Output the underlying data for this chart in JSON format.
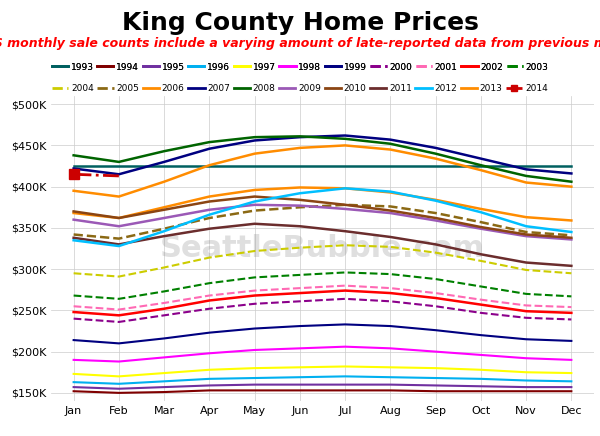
{
  "title": "King County Home Prices",
  "subtitle": "NWMLS monthly sale counts include a varying amount of late-reported data from previous months.",
  "months": [
    "Jan",
    "Feb",
    "Mar",
    "Apr",
    "May",
    "Jun",
    "Jul",
    "Aug",
    "Sep",
    "Oct",
    "Nov",
    "Dec"
  ],
  "ylim": [
    140000,
    510000
  ],
  "yticks": [
    150000,
    200000,
    250000,
    300000,
    350000,
    400000,
    450000,
    500000
  ],
  "ytick_labels": [
    "$150K",
    "$200K",
    "$250K",
    "$300K",
    "$350K",
    "$400K",
    "$450K",
    "$500K"
  ],
  "series": [
    {
      "year": "1993",
      "color": "#006060",
      "dash": "solid",
      "lw": 1.8,
      "values": [
        425000,
        425000,
        425000,
        425000,
        425000,
        425000,
        425000,
        425000,
        425000,
        425000,
        425000,
        425000
      ]
    },
    {
      "year": "1994",
      "color": "#800000",
      "dash": "solid",
      "lw": 1.5,
      "values": [
        152000,
        150000,
        151000,
        153000,
        153000,
        153000,
        153000,
        153000,
        152000,
        152000,
        152000,
        152000
      ]
    },
    {
      "year": "1995",
      "color": "#7030a0",
      "dash": "solid",
      "lw": 1.5,
      "values": [
        157000,
        155000,
        157000,
        159000,
        160000,
        160000,
        160000,
        160000,
        159000,
        158000,
        157000,
        157000
      ]
    },
    {
      "year": "1996",
      "color": "#00b0f0",
      "dash": "solid",
      "lw": 1.5,
      "values": [
        163000,
        161000,
        164000,
        167000,
        168000,
        169000,
        170000,
        169000,
        168000,
        167000,
        165000,
        164000
      ]
    },
    {
      "year": "1997",
      "color": "#ffff00",
      "dash": "solid",
      "lw": 1.5,
      "values": [
        173000,
        170000,
        174000,
        178000,
        180000,
        181000,
        182000,
        181000,
        180000,
        178000,
        175000,
        174000
      ]
    },
    {
      "year": "1998",
      "color": "#ff00ff",
      "dash": "solid",
      "lw": 1.5,
      "values": [
        190000,
        188000,
        193000,
        198000,
        202000,
        204000,
        206000,
        204000,
        200000,
        196000,
        192000,
        190000
      ]
    },
    {
      "year": "1999",
      "color": "#000080",
      "dash": "solid",
      "lw": 1.5,
      "values": [
        214000,
        210000,
        216000,
        223000,
        228000,
        231000,
        233000,
        231000,
        226000,
        220000,
        215000,
        213000
      ]
    },
    {
      "year": "2000",
      "color": "#8b008b",
      "dash": "dashed",
      "lw": 1.5,
      "values": [
        240000,
        236000,
        244000,
        252000,
        258000,
        261000,
        264000,
        261000,
        255000,
        247000,
        241000,
        239000
      ]
    },
    {
      "year": "2001",
      "color": "#ff69b4",
      "dash": "dashed",
      "lw": 1.5,
      "values": [
        255000,
        251000,
        259000,
        268000,
        274000,
        277000,
        280000,
        277000,
        271000,
        263000,
        256000,
        254000
      ]
    },
    {
      "year": "2002",
      "color": "#ff0000",
      "dash": "solid",
      "lw": 1.8,
      "values": [
        248000,
        244000,
        252000,
        262000,
        268000,
        271000,
        274000,
        271000,
        265000,
        257000,
        249000,
        247000
      ]
    },
    {
      "year": "2003",
      "color": "#008000",
      "dash": "dashed",
      "lw": 1.5,
      "values": [
        268000,
        264000,
        273000,
        283000,
        290000,
        293000,
        296000,
        294000,
        288000,
        279000,
        270000,
        267000
      ]
    },
    {
      "year": "2004",
      "color": "#cccc00",
      "dash": "dashed",
      "lw": 1.5,
      "values": [
        295000,
        291000,
        302000,
        314000,
        322000,
        326000,
        329000,
        327000,
        320000,
        310000,
        299000,
        295000
      ]
    },
    {
      "year": "2005",
      "color": "#8b6914",
      "dash": "dashed",
      "lw": 1.8,
      "values": [
        342000,
        337000,
        349000,
        362000,
        371000,
        375000,
        378000,
        376000,
        368000,
        357000,
        345000,
        341000
      ]
    },
    {
      "year": "2006",
      "color": "#ff8c00",
      "dash": "solid",
      "lw": 1.8,
      "values": [
        368000,
        362000,
        375000,
        388000,
        396000,
        399000,
        398000,
        393000,
        384000,
        373000,
        363000,
        359000
      ]
    },
    {
      "year": "2007",
      "color": "#000080",
      "dash": "solid",
      "lw": 1.8,
      "values": [
        422000,
        415000,
        430000,
        446000,
        456000,
        460000,
        462000,
        457000,
        447000,
        434000,
        421000,
        416000
      ]
    },
    {
      "year": "2008",
      "color": "#006400",
      "dash": "solid",
      "lw": 1.8,
      "values": [
        438000,
        430000,
        443000,
        454000,
        460000,
        461000,
        458000,
        452000,
        440000,
        426000,
        413000,
        406000
      ]
    },
    {
      "year": "2009",
      "color": "#9b59b6",
      "dash": "solid",
      "lw": 1.8,
      "values": [
        360000,
        352000,
        362000,
        372000,
        378000,
        377000,
        373000,
        368000,
        359000,
        349000,
        340000,
        336000
      ]
    },
    {
      "year": "2010",
      "color": "#8b4513",
      "dash": "solid",
      "lw": 1.8,
      "values": [
        370000,
        362000,
        372000,
        382000,
        388000,
        384000,
        378000,
        371000,
        362000,
        351000,
        342000,
        338000
      ]
    },
    {
      "year": "2011",
      "color": "#6b2d2d",
      "dash": "solid",
      "lw": 1.8,
      "values": [
        338000,
        330000,
        340000,
        349000,
        355000,
        352000,
        346000,
        339000,
        330000,
        318000,
        308000,
        304000
      ]
    },
    {
      "year": "2012",
      "color": "#00bfff",
      "dash": "solid",
      "lw": 1.8,
      "values": [
        335000,
        328000,
        346000,
        366000,
        382000,
        392000,
        398000,
        394000,
        383000,
        369000,
        352000,
        345000
      ]
    },
    {
      "year": "2013",
      "color": "#ff8c00",
      "dash": "solid",
      "lw": 1.8,
      "values": [
        395000,
        388000,
        406000,
        426000,
        440000,
        447000,
        450000,
        445000,
        434000,
        420000,
        405000,
        400000
      ]
    },
    {
      "year": "2014",
      "color": "#cc0000",
      "dash": "dashdot",
      "lw": 2.0,
      "values": [
        415000,
        413000,
        null,
        null,
        null,
        null,
        null,
        null,
        null,
        null,
        null,
        null
      ]
    }
  ],
  "legend_row1": [
    "1993",
    "1994",
    "1995",
    "1996",
    "1997",
    "1998",
    "1999",
    "2000",
    "2001",
    "2002",
    "2003"
  ],
  "legend_row2": [
    "2004",
    "2005",
    "2006",
    "2007",
    "2008",
    "2009",
    "2010",
    "2011",
    "2012",
    "2013",
    "2014"
  ],
  "legend_colors": {
    "1993": "#006060",
    "1994": "#800000",
    "1995": "#7030a0",
    "1996": "#00b0f0",
    "1997": "#ffff00",
    "1998": "#ff00ff",
    "1999": "#000080",
    "2000": "#8b008b",
    "2001": "#ff69b4",
    "2002": "#ff0000",
    "2003": "#008000",
    "2004": "#cccc00",
    "2005": "#8b6914",
    "2006": "#ff8c00",
    "2007": "#000080",
    "2008": "#006400",
    "2009": "#9b59b6",
    "2010": "#8b4513",
    "2011": "#6b2d2d",
    "2012": "#00bfff",
    "2013": "#ff8c00",
    "2014": "#cc0000"
  },
  "legend_dashes": {
    "1993": "solid",
    "1994": "solid",
    "1995": "solid",
    "1996": "solid",
    "1997": "solid",
    "1998": "solid",
    "1999": "solid",
    "2000": "dashed",
    "2001": "dashed",
    "2002": "solid",
    "2003": "dashed",
    "2004": "dashed",
    "2005": "dashed",
    "2006": "solid",
    "2007": "solid",
    "2008": "solid",
    "2009": "solid",
    "2010": "solid",
    "2011": "solid",
    "2012": "solid",
    "2013": "solid",
    "2014": "dashdot"
  },
  "background_color": "#ffffff",
  "grid_color": "#cccccc",
  "title_fontsize": 18,
  "subtitle_fontsize": 9,
  "subtitle_color": "#ff0000",
  "watermark": "SeattleBubble.com"
}
